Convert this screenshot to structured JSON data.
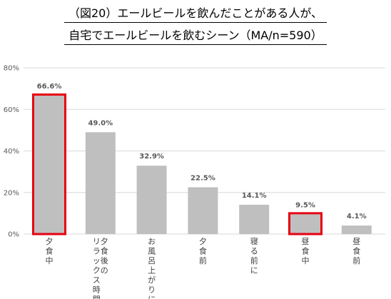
{
  "titles": {
    "line1": "（図20）エールビールを飲んだことがある人が、",
    "line2": "自宅でエールビールを飲むシーン（MA/n=590）"
  },
  "colors": {
    "bar": "#bfbfbf",
    "highlight": "#e60012",
    "grid": "#d9d9d9",
    "axis": "#d9d9d9",
    "label": "#595959"
  },
  "chart_data": {
    "type": "bar",
    "title": "",
    "xlabel": "",
    "ylabel": "",
    "ylim": [
      0,
      80
    ],
    "yticks": [
      0,
      20,
      40,
      60,
      80
    ],
    "ytick_labels": [
      "0%",
      "20%",
      "40%",
      "60%",
      "80%"
    ],
    "grid": true,
    "categories": [
      [
        "夕食中"
      ],
      [
        "夕食後の",
        "リラックス時間"
      ],
      [
        "お風呂上がりに"
      ],
      [
        "夕食前"
      ],
      [
        "寝る前に"
      ],
      [
        "昼食中"
      ],
      [
        "昼食前"
      ]
    ],
    "values": [
      66.6,
      49.0,
      32.9,
      22.5,
      14.1,
      9.5,
      4.1
    ],
    "value_labels": [
      "66.6%",
      "49.0%",
      "32.9%",
      "22.5%",
      "14.1%",
      "9.5%",
      "4.1%"
    ],
    "highlighted": [
      0,
      5
    ]
  }
}
